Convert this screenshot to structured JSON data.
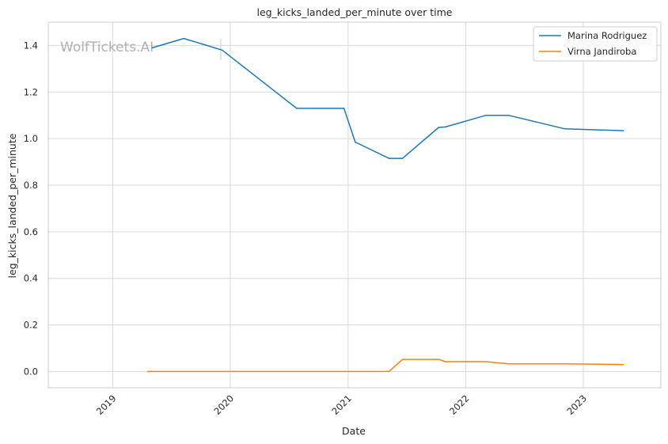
{
  "chart_data": {
    "type": "line",
    "title": "leg_kicks_landed_per_minute over time",
    "xlabel": "Date",
    "ylabel": "leg_kicks_landed_per_minute",
    "watermark": "WolfTickets.AI",
    "x_ticks": [
      "2019",
      "2020",
      "2021",
      "2022",
      "2023"
    ],
    "y_ticks": [
      "0.0",
      "0.2",
      "0.4",
      "0.6",
      "0.8",
      "1.0",
      "1.2",
      "1.4"
    ],
    "xlim": [
      "2018-06-15",
      "2023-08-30"
    ],
    "ylim": [
      -0.07,
      1.5
    ],
    "grid": true,
    "legend_position": "top-right",
    "series": [
      {
        "name": "Marina Rodriguez",
        "color": "#1f77b4",
        "points": [
          {
            "x": "2019-05-04",
            "y": 1.39
          },
          {
            "x": "2019-08-10",
            "y": 1.43
          },
          {
            "x": "2019-12-07",
            "y": 1.38
          },
          {
            "x": "2020-07-25",
            "y": 1.13
          },
          {
            "x": "2020-12-19",
            "y": 1.13
          },
          {
            "x": "2021-01-23",
            "y": 0.985
          },
          {
            "x": "2021-05-08",
            "y": 0.915
          },
          {
            "x": "2021-06-19",
            "y": 0.915
          },
          {
            "x": "2021-10-09",
            "y": 1.048
          },
          {
            "x": "2021-10-30",
            "y": 1.05
          },
          {
            "x": "2022-03-05",
            "y": 1.1
          },
          {
            "x": "2022-05-14",
            "y": 1.1
          },
          {
            "x": "2022-11-05",
            "y": 1.042
          },
          {
            "x": "2023-05-06",
            "y": 1.034
          }
        ]
      },
      {
        "name": "Virna Jandiroba",
        "color": "#ff7f0e",
        "points": [
          {
            "x": "2019-04-20",
            "y": 0.0
          },
          {
            "x": "2021-05-08",
            "y": 0.0
          },
          {
            "x": "2021-06-19",
            "y": 0.052
          },
          {
            "x": "2021-10-09",
            "y": 0.052
          },
          {
            "x": "2021-10-30",
            "y": 0.042
          },
          {
            "x": "2022-03-05",
            "y": 0.042
          },
          {
            "x": "2022-05-14",
            "y": 0.033
          },
          {
            "x": "2022-11-05",
            "y": 0.033
          },
          {
            "x": "2023-05-06",
            "y": 0.03
          }
        ]
      }
    ]
  }
}
